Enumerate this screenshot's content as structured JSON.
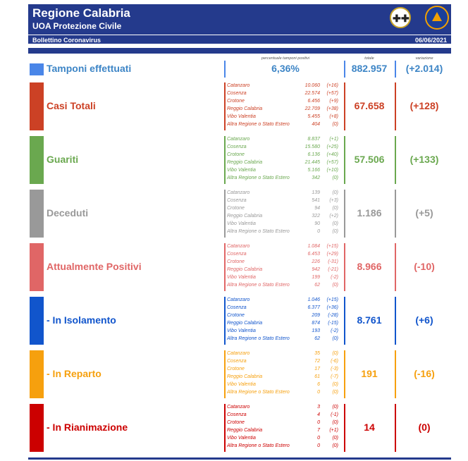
{
  "header": {
    "title": "Regione Calabria",
    "subtitle": "UOA Protezione Civile",
    "bulletin": "Bollettino Coronavirus",
    "date": "06/06/2021"
  },
  "columns": {
    "percent_label": "percentuale tamponi positivi",
    "total_label": "totale",
    "variation_label": "variazione"
  },
  "tamponi": {
    "label": "Tamponi effettuati",
    "percent": "6,36%",
    "total": "882.957",
    "variation": "(+2.014)"
  },
  "colors": {
    "header": "#243a8c",
    "casi": "#cc4125",
    "guariti": "#6aa84f",
    "deceduti": "#999999",
    "positivi": "#e06666",
    "isolamento": "#1155cc",
    "reparto": "#f6a00e",
    "rianimazione": "#cc0000"
  },
  "rows": [
    {
      "label": "Casi Totali",
      "total": "67.658",
      "variation": "(+128)",
      "provinces": [
        {
          "name": "Catanzaro",
          "value": "10.060",
          "delta": "(+16)"
        },
        {
          "name": "Cosenza",
          "value": "22.574",
          "delta": "(+57)"
        },
        {
          "name": "Crotone",
          "value": "6.456",
          "delta": "(+9)"
        },
        {
          "name": "Reggio Calabria",
          "value": "22.709",
          "delta": "(+38)"
        },
        {
          "name": "Vibo Valentia",
          "value": "5.455",
          "delta": "(+8)"
        },
        {
          "name": "Altra Regione o Stato Estero",
          "value": "404",
          "delta": "(0)"
        }
      ]
    },
    {
      "label": "Guariti",
      "total": "57.506",
      "variation": "(+133)",
      "provinces": [
        {
          "name": "Catanzaro",
          "value": "8.837",
          "delta": "(+1)"
        },
        {
          "name": "Cosenza",
          "value": "15.580",
          "delta": "(+25)"
        },
        {
          "name": "Crotone",
          "value": "6.136",
          "delta": "(+40)"
        },
        {
          "name": "Reggio Calabria",
          "value": "21.445",
          "delta": "(+57)"
        },
        {
          "name": "Vibo Valentia",
          "value": "5.166",
          "delta": "(+10)"
        },
        {
          "name": "Altra Regione o Stato Estero",
          "value": "342",
          "delta": "(0)"
        }
      ]
    },
    {
      "label": "Deceduti",
      "total": "1.186",
      "variation": "(+5)",
      "provinces": [
        {
          "name": "Catanzaro",
          "value": "139",
          "delta": "(0)"
        },
        {
          "name": "Cosenza",
          "value": "541",
          "delta": "(+3)"
        },
        {
          "name": "Crotone",
          "value": "94",
          "delta": "(0)"
        },
        {
          "name": "Reggio Calabria",
          "value": "322",
          "delta": "(+2)"
        },
        {
          "name": "Vibo Valentia",
          "value": "90",
          "delta": "(0)"
        },
        {
          "name": "Altra Regione o Stato Estero",
          "value": "0",
          "delta": "(0)"
        }
      ]
    },
    {
      "label": "Attualmente Positivi",
      "total": "8.966",
      "variation": "(-10)",
      "provinces": [
        {
          "name": "Catanzaro",
          "value": "1.084",
          "delta": "(+15)"
        },
        {
          "name": "Cosenza",
          "value": "6.453",
          "delta": "(+29)"
        },
        {
          "name": "Crotone",
          "value": "226",
          "delta": "(-31)"
        },
        {
          "name": "Reggio Calabria",
          "value": "942",
          "delta": "(-21)"
        },
        {
          "name": "Vibo Valentia",
          "value": "199",
          "delta": "(-2)"
        },
        {
          "name": "Altra Regione o Stato Estero",
          "value": "62",
          "delta": "(0)"
        }
      ]
    },
    {
      "label": " - In Isolamento",
      "total": "8.761",
      "variation": "(+6)",
      "provinces": [
        {
          "name": "Catanzaro",
          "value": "1.046",
          "delta": "(+15)"
        },
        {
          "name": "Cosenza",
          "value": "6.377",
          "delta": "(+36)"
        },
        {
          "name": "Crotone",
          "value": "209",
          "delta": "(-28)"
        },
        {
          "name": "Reggio Calabria",
          "value": "874",
          "delta": "(-15)"
        },
        {
          "name": "Vibo Valentia",
          "value": "193",
          "delta": "(-2)"
        },
        {
          "name": "Altra Regione o Stato Estero",
          "value": "62",
          "delta": "(0)"
        }
      ]
    },
    {
      "label": " - In Reparto",
      "total": "191",
      "variation": "(-16)",
      "provinces": [
        {
          "name": "Catanzaro",
          "value": "35",
          "delta": "(0)"
        },
        {
          "name": "Cosenza",
          "value": "72",
          "delta": "(-6)"
        },
        {
          "name": "Crotone",
          "value": "17",
          "delta": "(-3)"
        },
        {
          "name": "Reggio Calabria",
          "value": "61",
          "delta": "(-7)"
        },
        {
          "name": "Vibo Valentia",
          "value": "6",
          "delta": "(0)"
        },
        {
          "name": "Altra Regione o Stato Estero",
          "value": "0",
          "delta": "(0)"
        }
      ]
    },
    {
      "label": " - In Rianimazione",
      "total": "14",
      "variation": "(0)",
      "provinces": [
        {
          "name": "Catanzaro",
          "value": "3",
          "delta": "(0)"
        },
        {
          "name": "Cosenza",
          "value": "4",
          "delta": "(-1)"
        },
        {
          "name": "Crotone",
          "value": "0",
          "delta": "(0)"
        },
        {
          "name": "Reggio Calabria",
          "value": "7",
          "delta": "(+1)"
        },
        {
          "name": "Vibo Valentia",
          "value": "0",
          "delta": "(0)"
        },
        {
          "name": "Altra Regione o Stato Estero",
          "value": "0",
          "delta": "(0)"
        }
      ]
    }
  ]
}
